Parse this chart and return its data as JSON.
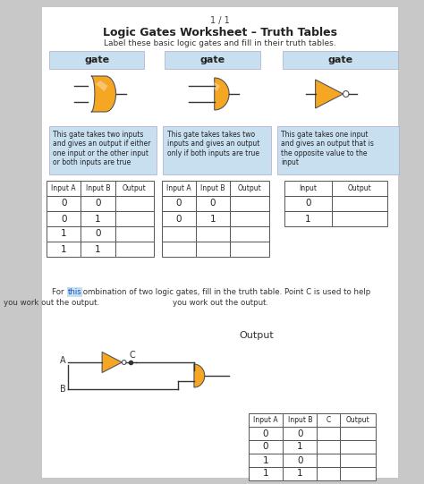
{
  "title": "Logic Gates Worksheet – Truth Tables",
  "subtitle": "Label these basic logic gates and fill in their truth tables.",
  "page_label": "1 / 1",
  "background_color": "#c8c8c8",
  "page_bg": "#ffffff",
  "gate_label_bg": "#c8dff0",
  "gate_label_text": "gate",
  "desc1": "This gate takes two inputs\nand gives an output if either\none input or the other input\nor both inputs are true",
  "desc2": "This gate takes takes two\ninputs and gives an output\nonly if both inputs are true",
  "desc3": "This gate takes one input\nand gives an output that is\nthe opposite value to the\ninput",
  "table1_headers": [
    "Input A",
    "Input B",
    "Output"
  ],
  "table1_rows": [
    [
      "0",
      "0",
      ""
    ],
    [
      "0",
      "1",
      ""
    ],
    [
      "1",
      "0",
      ""
    ],
    [
      "1",
      "1",
      ""
    ]
  ],
  "table2_headers": [
    "Input A",
    "Input B",
    "Output"
  ],
  "table2_rows": [
    [
      "0",
      "0",
      ""
    ],
    [
      "0",
      "1",
      ""
    ],
    [
      "",
      "",
      ""
    ],
    [
      "",
      "",
      ""
    ]
  ],
  "table3_headers": [
    "Input",
    "Output"
  ],
  "table3_rows": [
    [
      "0",
      ""
    ],
    [
      "1",
      ""
    ]
  ],
  "bottom_line1": "For      combination of two logic gates, fill in the truth table. Point C is used to help",
  "bottom_this": "this",
  "bottom_line2": "you work out the output.",
  "bottom_output_label": "Output",
  "table4_headers": [
    "Input A",
    "Input B",
    "C",
    "Output"
  ],
  "table4_rows": [
    [
      "0",
      "0",
      "",
      ""
    ],
    [
      "0",
      "1",
      "",
      ""
    ],
    [
      "1",
      "0",
      "",
      ""
    ],
    [
      "1",
      "1",
      "",
      ""
    ]
  ],
  "orange_color": "#f5a623",
  "label_A": "A",
  "label_B": "B",
  "label_C": "C"
}
